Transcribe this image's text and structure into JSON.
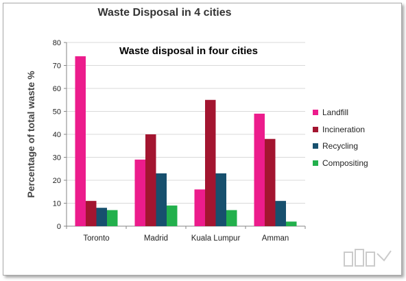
{
  "chart_data": {
    "type": "bar",
    "title": "Waste Disposal in 4 cities",
    "subtitle": "Waste disposal in four cities",
    "xlabel": "",
    "ylabel": "Percentage of total waste %",
    "ylim": [
      0,
      80
    ],
    "yticks": [
      "0",
      "10",
      "20",
      "30",
      "40",
      "50",
      "60",
      "70",
      "80"
    ],
    "grid": true,
    "legend_position": "right",
    "categories": [
      "Toronto",
      "Madrid",
      "Kuala Lumpur",
      "Amman"
    ],
    "series": [
      {
        "name": "Landfill",
        "color": "#ec1c8c",
        "values": [
          74,
          29,
          16,
          49
        ]
      },
      {
        "name": "Incineration",
        "color": "#a31530",
        "values": [
          11,
          40,
          55,
          38
        ]
      },
      {
        "name": "Recycling",
        "color": "#17506e",
        "values": [
          8,
          23,
          23,
          11
        ]
      },
      {
        "name": "Compositing",
        "color": "#22b04c",
        "values": [
          7,
          9,
          7,
          2
        ]
      }
    ]
  }
}
